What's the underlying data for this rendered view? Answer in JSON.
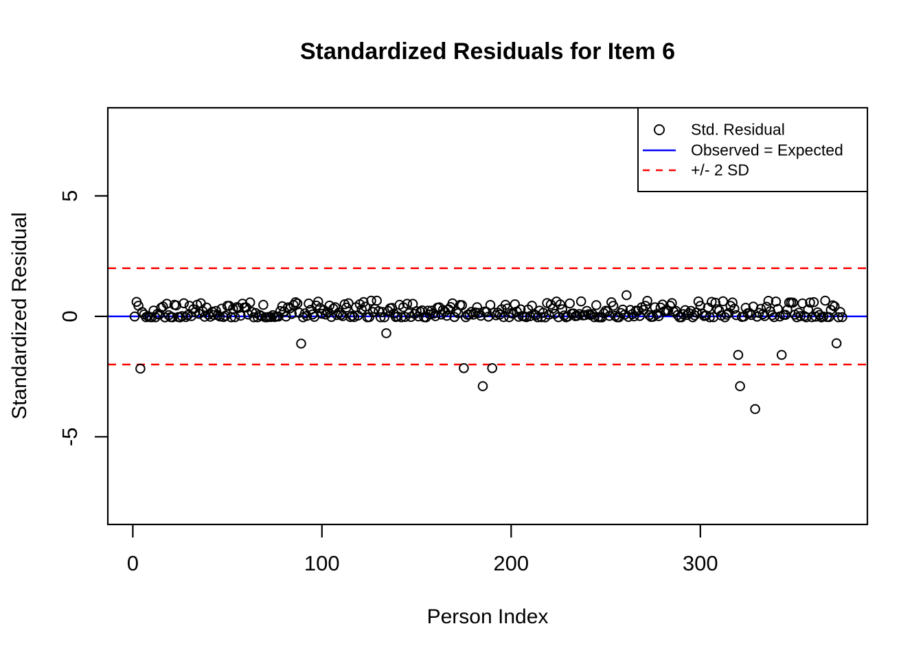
{
  "chart_data": {
    "type": "scatter",
    "title": "Standardized Residuals for Item 6",
    "xlabel": "Person Index",
    "ylabel": "Standardized Residual",
    "xlim": [
      -13.2,
      388.3
    ],
    "ylim": [
      -8.64,
      8.66
    ],
    "x_ticks": [
      0,
      100,
      200,
      300
    ],
    "y_ticks": [
      -5,
      0,
      5
    ],
    "grid": false,
    "legend_position": "topright",
    "legend": [
      {
        "label": "Std. Residual",
        "symbol": "open-circle",
        "color": "#000000"
      },
      {
        "label": "Observed = Expected",
        "symbol": "solid-line",
        "color": "#0000FF"
      },
      {
        "label": "+/- 2 SD",
        "symbol": "dashed-line",
        "color": "#FF0000"
      }
    ],
    "reference_lines": [
      {
        "name": "observed-equals-expected",
        "y": 0,
        "style": "solid",
        "color": "#0000FF"
      },
      {
        "name": "plus-2-sd",
        "y": 2,
        "style": "dashed",
        "color": "#FF0000"
      },
      {
        "name": "minus-2-sd",
        "y": -2,
        "style": "dashed",
        "color": "#FF0000"
      }
    ],
    "points": {
      "n_total": 375,
      "x_range": [
        1,
        375
      ],
      "marker": "open-circle",
      "color": "#000000",
      "band": {
        "description": "dense band of residuals hugging y = 0, roughly -0.04 to 0.66",
        "seed": 123456789,
        "y_offset": -0.04,
        "y_scale": 0.7,
        "exponent": 2
      },
      "outliers": [
        [
          4,
          -2.17
        ],
        [
          89,
          -1.13
        ],
        [
          134,
          -0.7
        ],
        [
          175,
          -2.15
        ],
        [
          185,
          -2.9
        ],
        [
          190,
          -2.15
        ],
        [
          261,
          0.88
        ],
        [
          320,
          -1.6
        ],
        [
          321,
          -2.9
        ],
        [
          329,
          -3.85
        ],
        [
          343,
          -1.6
        ],
        [
          349,
          0.57
        ],
        [
          366,
          0.65
        ],
        [
          372,
          -1.12
        ]
      ]
    },
    "colors": {
      "background": "#FFFFFF",
      "axis": "#000000",
      "point": "#000000",
      "observed_line": "#0000FF",
      "sd_line": "#FF0000"
    }
  }
}
